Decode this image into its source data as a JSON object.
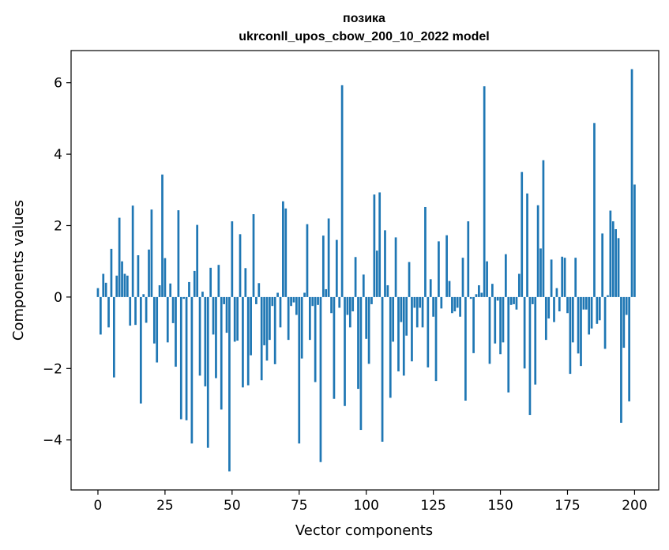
{
  "chart_data": {
    "type": "bar",
    "title_line1": "позика",
    "title_line2": "ukrconll_upos_cbow_200_10_2022 model",
    "xlabel": "Vector components",
    "ylabel": "Components values",
    "xlim": [
      -10,
      209
    ],
    "ylim": [
      -5.4,
      6.9
    ],
    "xticks": [
      0,
      25,
      50,
      75,
      100,
      125,
      150,
      175,
      200
    ],
    "xtick_labels": [
      "0",
      "25",
      "50",
      "75",
      "100",
      "125",
      "150",
      "175",
      "200"
    ],
    "yticks": [
      -4,
      -2,
      0,
      2,
      4,
      6
    ],
    "ytick_labels": [
      "−4",
      "−2",
      "0",
      "2",
      "4",
      "6"
    ],
    "bar_color": "#1f77b4",
    "grid": false,
    "values": [
      0.25,
      -1.05,
      0.65,
      0.4,
      -0.85,
      1.35,
      -2.25,
      0.6,
      2.22,
      1.0,
      0.65,
      0.6,
      -0.8,
      2.56,
      -0.78,
      1.17,
      -2.98,
      0.08,
      -0.72,
      1.33,
      2.45,
      -1.3,
      -1.83,
      0.33,
      3.43,
      1.09,
      -1.27,
      0.38,
      -0.73,
      -1.95,
      2.43,
      -3.42,
      -0.05,
      -3.45,
      0.42,
      -4.1,
      0.73,
      2.02,
      -2.2,
      0.15,
      -2.5,
      -4.22,
      0.82,
      -1.05,
      -2.27,
      0.9,
      -3.15,
      -0.2,
      -1.0,
      -4.88,
      2.12,
      -1.25,
      -1.22,
      1.76,
      -2.53,
      0.81,
      -2.47,
      -1.63,
      2.32,
      -0.2,
      0.39,
      -2.33,
      -1.35,
      -1.78,
      -1.2,
      -0.25,
      -1.88,
      0.12,
      -0.85,
      2.68,
      2.48,
      -1.2,
      -0.25,
      -0.15,
      -0.5,
      -4.1,
      -1.72,
      0.12,
      2.04,
      -1.2,
      -0.25,
      -2.38,
      -0.22,
      -4.62,
      1.72,
      0.22,
      2.2,
      -0.45,
      -2.85,
      1.6,
      -0.3,
      5.93,
      -3.05,
      -0.5,
      -0.85,
      -0.4,
      1.12,
      -2.57,
      -3.72,
      0.63,
      -1.17,
      -1.87,
      -0.2,
      2.87,
      1.3,
      2.93,
      -4.05,
      1.87,
      0.33,
      -2.82,
      -1.25,
      1.67,
      -2.08,
      -0.7,
      -2.2,
      -1.08,
      0.98,
      -1.8,
      -0.3,
      -0.85,
      -0.3,
      -0.85,
      2.52,
      -1.97,
      0.5,
      -0.55,
      -2.35,
      1.56,
      -0.32,
      0.0,
      1.73,
      0.45,
      -0.45,
      -0.4,
      -0.3,
      -0.55,
      1.1,
      -2.9,
      2.12,
      -0.05,
      -1.57,
      0.08,
      0.33,
      0.12,
      5.9,
      1.0,
      -1.87,
      0.37,
      -1.3,
      -0.1,
      -1.6,
      -1.27,
      1.2,
      -2.67,
      -0.22,
      -0.2,
      -0.35,
      0.65,
      3.5,
      -2.0,
      2.9,
      -3.3,
      -0.2,
      -2.45,
      2.57,
      1.36,
      3.83,
      -1.2,
      -0.6,
      1.05,
      -0.7,
      0.25,
      -0.4,
      1.13,
      1.1,
      -0.45,
      -2.15,
      -1.27,
      1.1,
      -1.58,
      -1.93,
      -0.35,
      -0.35,
      -1.05,
      -0.88,
      4.87,
      -0.75,
      -0.65,
      1.78,
      -1.45,
      0.05,
      2.42,
      2.12,
      1.9,
      1.65,
      -3.52,
      -1.42,
      -0.5,
      -2.92,
      6.38,
      3.15
    ]
  }
}
